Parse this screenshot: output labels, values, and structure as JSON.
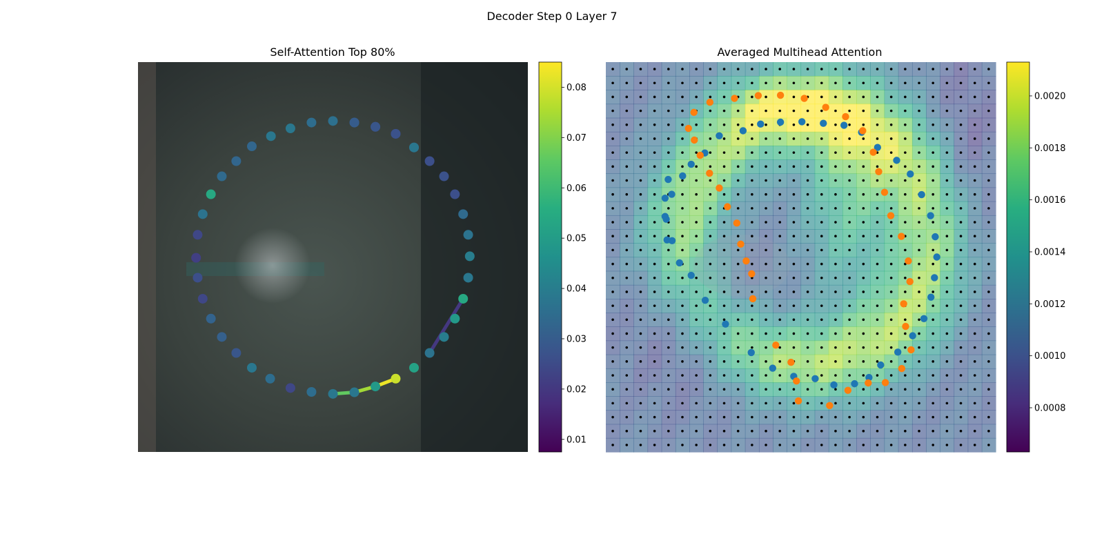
{
  "figure": {
    "title": "Decoder Step 0 Layer 7"
  },
  "chart_data": [
    {
      "type": "scatter",
      "title": "Self-Attention Top 80%",
      "xlim": [
        0,
        1
      ],
      "ylim": [
        0,
        1
      ],
      "axes_visible": false,
      "background": "blurred photo (dark gray-green)",
      "points": [
        {
          "x": 0.5,
          "y": 0.849,
          "v": 0.036
        },
        {
          "x": 0.555,
          "y": 0.845,
          "v": 0.032
        },
        {
          "x": 0.609,
          "y": 0.834,
          "v": 0.025
        },
        {
          "x": 0.661,
          "y": 0.816,
          "v": 0.024
        },
        {
          "x": 0.708,
          "y": 0.781,
          "v": 0.027
        },
        {
          "x": 0.748,
          "y": 0.746,
          "v": 0.026
        },
        {
          "x": 0.785,
          "y": 0.707,
          "v": 0.027
        },
        {
          "x": 0.813,
          "y": 0.661,
          "v": 0.026
        },
        {
          "x": 0.834,
          "y": 0.61,
          "v": 0.034
        },
        {
          "x": 0.847,
          "y": 0.557,
          "v": 0.037
        },
        {
          "x": 0.851,
          "y": 0.502,
          "v": 0.04
        },
        {
          "x": 0.847,
          "y": 0.447,
          "v": 0.038
        },
        {
          "x": 0.834,
          "y": 0.393,
          "v": 0.054
        },
        {
          "x": 0.813,
          "y": 0.342,
          "v": 0.049
        },
        {
          "x": 0.785,
          "y": 0.295,
          "v": 0.04
        },
        {
          "x": 0.748,
          "y": 0.254,
          "v": 0.037
        },
        {
          "x": 0.708,
          "y": 0.216,
          "v": 0.052
        },
        {
          "x": 0.661,
          "y": 0.188,
          "v": 0.079
        },
        {
          "x": 0.609,
          "y": 0.168,
          "v": 0.049
        },
        {
          "x": 0.555,
          "y": 0.153,
          "v": 0.038
        },
        {
          "x": 0.5,
          "y": 0.149,
          "v": 0.038
        },
        {
          "x": 0.445,
          "y": 0.154,
          "v": 0.035
        },
        {
          "x": 0.391,
          "y": 0.164,
          "v": 0.024
        },
        {
          "x": 0.339,
          "y": 0.188,
          "v": 0.035
        },
        {
          "x": 0.292,
          "y": 0.216,
          "v": 0.038
        },
        {
          "x": 0.252,
          "y": 0.254,
          "v": 0.028
        },
        {
          "x": 0.215,
          "y": 0.295,
          "v": 0.031
        },
        {
          "x": 0.187,
          "y": 0.342,
          "v": 0.032
        },
        {
          "x": 0.166,
          "y": 0.393,
          "v": 0.024
        },
        {
          "x": 0.153,
          "y": 0.447,
          "v": 0.026
        },
        {
          "x": 0.149,
          "y": 0.498,
          "v": 0.022
        },
        {
          "x": 0.153,
          "y": 0.557,
          "v": 0.024
        },
        {
          "x": 0.166,
          "y": 0.61,
          "v": 0.037
        },
        {
          "x": 0.187,
          "y": 0.661,
          "v": 0.054
        },
        {
          "x": 0.215,
          "y": 0.707,
          "v": 0.034
        },
        {
          "x": 0.252,
          "y": 0.746,
          "v": 0.033
        },
        {
          "x": 0.292,
          "y": 0.784,
          "v": 0.033
        },
        {
          "x": 0.341,
          "y": 0.81,
          "v": 0.038
        },
        {
          "x": 0.391,
          "y": 0.83,
          "v": 0.038
        },
        {
          "x": 0.445,
          "y": 0.845,
          "v": 0.035
        },
        {
          "x": 0.555,
          "y": 0.845,
          "v": 0.03
        },
        {
          "x": 0.609,
          "y": 0.834,
          "v": 0.028
        },
        {
          "x": 0.661,
          "y": 0.816,
          "v": 0.027
        },
        {
          "x": 0.708,
          "y": 0.781,
          "v": 0.038
        }
      ],
      "links": [
        {
          "from": [
            0.5,
            0.149
          ],
          "to": [
            0.555,
            0.153
          ],
          "v": 0.066
        },
        {
          "from": [
            0.555,
            0.153
          ],
          "to": [
            0.609,
            0.168
          ],
          "v": 0.074
        },
        {
          "from": [
            0.609,
            0.168
          ],
          "to": [
            0.661,
            0.188
          ],
          "v": 0.083
        },
        {
          "from": [
            0.748,
            0.254
          ],
          "to": [
            0.834,
            0.393
          ],
          "v": 0.02
        }
      ],
      "colorbar": {
        "colormap": "viridis",
        "range": [
          0.0075,
          0.085
        ],
        "ticks": [
          0.01,
          0.02,
          0.03,
          0.04,
          0.05,
          0.06,
          0.07,
          0.08
        ],
        "tick_labels": [
          "0.01",
          "0.02",
          "0.03",
          "0.04",
          "0.05",
          "0.06",
          "0.07",
          "0.08"
        ]
      }
    },
    {
      "type": "heatmap",
      "title": "Averaged Multihead Attention",
      "xlim": [
        0,
        1
      ],
      "ylim": [
        0,
        1
      ],
      "axes_visible": false,
      "grid": {
        "rows": 28,
        "cols": 28
      },
      "overlay": "black dot at every grid cell center, over blurred photo",
      "colorbar": {
        "colormap": "viridis",
        "range": [
          0.00063,
          0.00213
        ],
        "ticks": [
          0.0008,
          0.001,
          0.0012,
          0.0014,
          0.0016,
          0.0018,
          0.002
        ],
        "tick_labels": [
          "0.0008",
          "0.0010",
          "0.0012",
          "0.0014",
          "0.0016",
          "0.0018",
          "0.0020"
        ]
      },
      "series": [
        {
          "color": "#1f77b4",
          "x": [
            0.16,
            0.152,
            0.155,
            0.17,
            0.189,
            0.219,
            0.255,
            0.307,
            0.373,
            0.428,
            0.482,
            0.537,
            0.585,
            0.638,
            0.675,
            0.705,
            0.749,
            0.787,
            0.816,
            0.834,
            0.843,
            0.849,
            0.845,
            0.833,
            0.81,
            0.781,
            0.746,
            0.697,
            0.656,
            0.611,
            0.558,
            0.503,
            0.448,
            0.397,
            0.352,
            0.291,
            0.254,
            0.219,
            0.197,
            0.169,
            0.152,
            0.157
          ],
          "y": [
            0.699,
            0.651,
            0.597,
            0.542,
            0.485,
            0.453,
            0.389,
            0.328,
            0.255,
            0.215,
            0.194,
            0.188,
            0.172,
            0.175,
            0.191,
            0.223,
            0.256,
            0.298,
            0.342,
            0.397,
            0.447,
            0.5,
            0.552,
            0.606,
            0.66,
            0.713,
            0.748,
            0.781,
            0.82,
            0.838,
            0.843,
            0.847,
            0.846,
            0.841,
            0.824,
            0.811,
            0.767,
            0.738,
            0.708,
            0.661,
            0.604,
            0.544
          ]
        },
        {
          "color": "#ff7f0e",
          "x": [
            0.212,
            0.226,
            0.267,
            0.33,
            0.391,
            0.448,
            0.509,
            0.564,
            0.615,
            0.659,
            0.686,
            0.7,
            0.715,
            0.731,
            0.758,
            0.776,
            0.78,
            0.764,
            0.769,
            0.783,
            0.759,
            0.717,
            0.673,
            0.621,
            0.574,
            0.494,
            0.489,
            0.475,
            0.436,
            0.377,
            0.374,
            0.36,
            0.346,
            0.336,
            0.312,
            0.291,
            0.266,
            0.242,
            0.227
          ],
          "y": [
            0.83,
            0.871,
            0.897,
            0.907,
            0.914,
            0.915,
            0.907,
            0.884,
            0.86,
            0.824,
            0.769,
            0.719,
            0.666,
            0.606,
            0.553,
            0.49,
            0.437,
            0.38,
            0.322,
            0.262,
            0.214,
            0.178,
            0.177,
            0.158,
            0.119,
            0.131,
            0.182,
            0.23,
            0.274,
            0.393,
            0.457,
            0.49,
            0.533,
            0.587,
            0.629,
            0.677,
            0.715,
            0.761,
            0.8
          ]
        }
      ]
    }
  ]
}
